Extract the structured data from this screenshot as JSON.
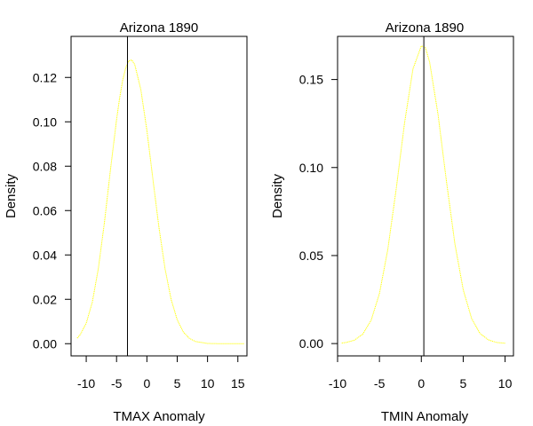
{
  "chart_data": [
    {
      "type": "line",
      "title": "Arizona 1890",
      "xlabel": "TMAX Anomaly",
      "ylabel": "Density",
      "xlim": [
        -12.5,
        16.5
      ],
      "ylim": [
        -0.0055,
        0.1385
      ],
      "x_ticks": [
        -10,
        -5,
        0,
        5,
        10,
        15
      ],
      "y_ticks": [
        0.0,
        0.02,
        0.04,
        0.06,
        0.08,
        0.1,
        0.12
      ],
      "y_tick_labels": [
        "0.00",
        "0.02",
        "0.04",
        "0.06",
        "0.08",
        "0.10",
        "0.12"
      ],
      "grid": false,
      "series": [
        {
          "color": "#ffff00",
          "x": [
            -11.5,
            -11,
            -10,
            -9,
            -8,
            -7,
            -6,
            -5,
            -4.5,
            -4,
            -3.5,
            -3,
            -2.5,
            -2,
            -1,
            0,
            1,
            2,
            3,
            4,
            5,
            6,
            7,
            8,
            10,
            12,
            14,
            16
          ],
          "y": [
            0.0025,
            0.004,
            0.0092,
            0.0187,
            0.0339,
            0.0546,
            0.0785,
            0.1009,
            0.1106,
            0.1186,
            0.1242,
            0.1274,
            0.1279,
            0.1258,
            0.1146,
            0.0962,
            0.074,
            0.0522,
            0.0337,
            0.0199,
            0.0108,
            0.0053,
            0.0024,
            0.001,
            0.0001,
            0.0,
            0.0,
            0.0
          ]
        }
      ],
      "vline": {
        "x": -3.2,
        "color": "#000000"
      }
    },
    {
      "type": "line",
      "title": "Arizona 1890",
      "xlabel": "TMIN Anomaly",
      "ylabel": "Density",
      "xlim": [
        -10,
        11
      ],
      "ylim": [
        -0.007,
        0.1745
      ],
      "x_ticks": [
        -10,
        -5,
        0,
        5,
        10
      ],
      "y_ticks": [
        0.0,
        0.05,
        0.1,
        0.15
      ],
      "y_tick_labels": [
        "0.00",
        "0.05",
        "0.10",
        "0.15"
      ],
      "grid": false,
      "series": [
        {
          "color": "#ffff00",
          "x": [
            -9.5,
            -9,
            -8,
            -7,
            -6,
            -5,
            -4,
            -3,
            -2,
            -1,
            0,
            0.5,
            1,
            2,
            3,
            4,
            5,
            6,
            7,
            8,
            9,
            10
          ],
          "y": [
            0.0003,
            0.0006,
            0.0019,
            0.0053,
            0.0131,
            0.0284,
            0.0535,
            0.0878,
            0.1254,
            0.156,
            0.1691,
            0.168,
            0.1597,
            0.13,
            0.0922,
            0.0569,
            0.0306,
            0.0143,
            0.0058,
            0.0021,
            0.0006,
            0.0002
          ]
        }
      ],
      "vline": {
        "x": 0.3,
        "color": "#000000"
      }
    }
  ]
}
